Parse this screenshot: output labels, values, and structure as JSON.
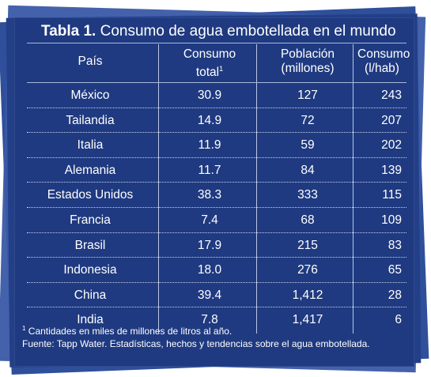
{
  "title": {
    "bold": "Tabla 1.",
    "rest": " Consumo de agua embotellada en el mundo"
  },
  "columns": [
    {
      "line1": "País",
      "line2": ""
    },
    {
      "line1": "Consumo",
      "line2": "total",
      "sup": "1"
    },
    {
      "line1": "Población",
      "line2": "(millones)"
    },
    {
      "line1": "Consumo",
      "line2": "(l/hab)"
    }
  ],
  "rows": [
    {
      "pais": "México",
      "total": "30.9",
      "poblacion": "127",
      "consumo": "243"
    },
    {
      "pais": "Tailandia",
      "total": "14.9",
      "poblacion": "72",
      "consumo": "207"
    },
    {
      "pais": "Italia",
      "total": "11.9",
      "poblacion": "59",
      "consumo": "202"
    },
    {
      "pais": "Alemania",
      "total": "11.7",
      "poblacion": "84",
      "consumo": "139"
    },
    {
      "pais": "Estados Unidos",
      "total": "38.3",
      "poblacion": "333",
      "consumo": "115"
    },
    {
      "pais": "Francia",
      "total": "7.4",
      "poblacion": "68",
      "consumo": "109"
    },
    {
      "pais": "Brasil",
      "total": "17.9",
      "poblacion": "215",
      "consumo": "83"
    },
    {
      "pais": "Indonesia",
      "total": "18.0",
      "poblacion": "276",
      "consumo": "65"
    },
    {
      "pais": "China",
      "total": "39.4",
      "poblacion": "1,412",
      "consumo": "28"
    },
    {
      "pais": "India",
      "total": "7.8",
      "poblacion": "1,417",
      "consumo": "6"
    }
  ],
  "footnote": {
    "sup": "1",
    "text": " Cantidades en miles de millones de litros al año."
  },
  "source": "Fuente: Tapp Water. Estadísticas, hechos y tendencias sobre el agua embotellada.",
  "colors": {
    "card": "#1f3a80",
    "layers": "#2f4f9a",
    "text": "#ffffff"
  }
}
